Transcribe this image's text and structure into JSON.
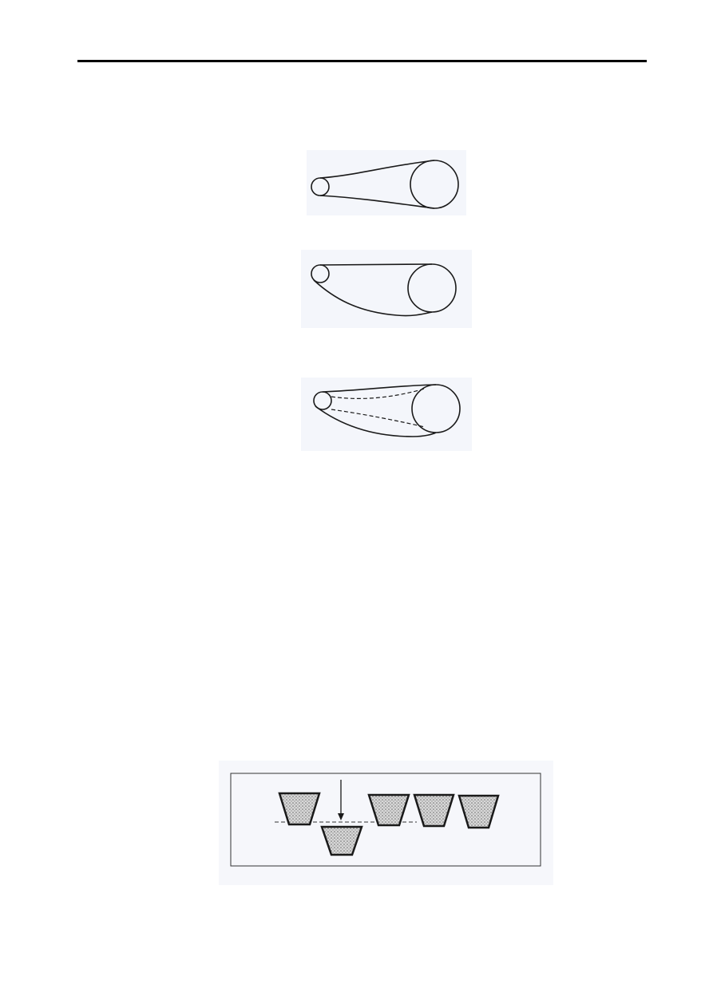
{
  "page": {
    "header_rule": true
  },
  "figures": [
    {
      "id": "belt-drive-taut",
      "description_icon": "belt-drive-icon"
    },
    {
      "id": "belt-drive-slack-lower",
      "description_icon": "belt-drive-icon"
    },
    {
      "id": "belt-drive-sag-dashed",
      "description_icon": "belt-drive-icon"
    },
    {
      "id": "v-belt-seating",
      "description_icon": "v-belt-section-icon"
    }
  ],
  "colors": {
    "line": "#1a1a1a",
    "scan_background": "#f4f6fb",
    "stipple": "#9a9a9a"
  }
}
